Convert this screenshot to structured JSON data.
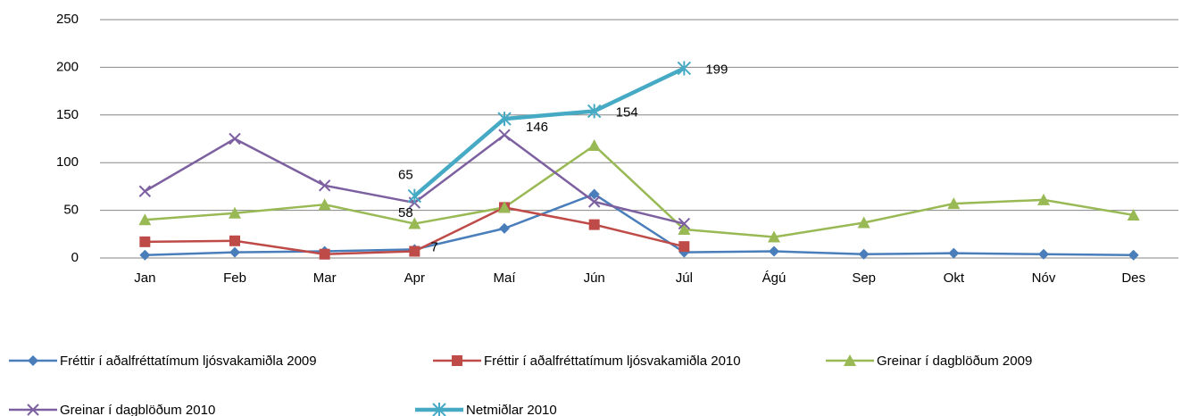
{
  "chart_data": {
    "type": "line",
    "categories": [
      "Jan",
      "Feb",
      "Mar",
      "Apr",
      "Maí",
      "Jún",
      "Júl",
      "Ágú",
      "Sep",
      "Okt",
      "Nóv",
      "Des"
    ],
    "ylim": [
      0,
      250
    ],
    "yticks": [
      0,
      50,
      100,
      150,
      200,
      250
    ],
    "grid": true,
    "legend": "bottom",
    "series": [
      {
        "name": "Fréttir í aðalfréttatímum ljósvakamiðla 2009",
        "color": "#4a7ebb",
        "marker": "diamond",
        "width": 2.5,
        "values": [
          3,
          6,
          7,
          9,
          31,
          67,
          6,
          7,
          4,
          5,
          4,
          3
        ],
        "labels": []
      },
      {
        "name": "Fréttir í aðalfréttatímum ljósvakamiðla 2010",
        "color": "#be4b48",
        "marker": "square",
        "width": 2.5,
        "values": [
          17,
          18,
          4,
          7,
          53,
          35,
          12,
          null,
          null,
          null,
          null,
          null
        ],
        "labels": [
          3
        ]
      },
      {
        "name": "Greinar í dagblöðum 2009",
        "color": "#98b954",
        "marker": "triangle",
        "width": 2.5,
        "values": [
          40,
          47,
          56,
          36,
          53,
          118,
          30,
          22,
          37,
          57,
          61,
          45
        ],
        "labels": []
      },
      {
        "name": "Greinar í dagblöðum 2010",
        "color": "#7d60a0",
        "marker": "x",
        "width": 2.5,
        "values": [
          70,
          125,
          76,
          58,
          129,
          59,
          36,
          null,
          null,
          null,
          null,
          null
        ],
        "labels": [
          3
        ]
      },
      {
        "name": "Netmiðlar 2010",
        "color": "#46aac5",
        "marker": "star",
        "width": 4.5,
        "values": [
          null,
          null,
          null,
          65,
          146,
          154,
          199,
          null,
          null,
          null,
          null,
          null
        ],
        "labels": [
          3,
          4,
          5,
          6
        ]
      }
    ]
  }
}
